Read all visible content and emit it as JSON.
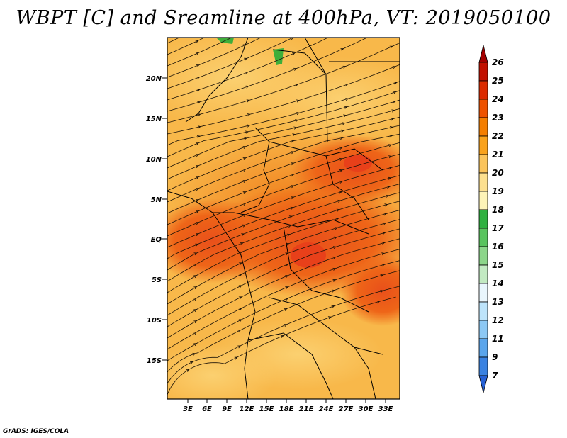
{
  "title": "WBPT [C] and Sreamline at 400hPa, VT: 2019050100",
  "footer": "GrADS: IGES/COLA",
  "map": {
    "variable": "WBPT",
    "units": "C",
    "level": "400hPa",
    "valid_time": "2019050100",
    "lat_ticks": [
      "20N",
      "15N",
      "10N",
      "5N",
      "EQ",
      "5S",
      "10S",
      "15S"
    ],
    "lon_ticks": [
      "3E",
      "6E",
      "9E",
      "12E",
      "15E",
      "18E",
      "21E",
      "24E",
      "27E",
      "30E",
      "33E"
    ]
  },
  "colorbar": {
    "labels": [
      "26",
      "25",
      "24",
      "23",
      "22",
      "21",
      "20",
      "19",
      "18",
      "17",
      "16",
      "15",
      "14",
      "13",
      "12",
      "11",
      "9",
      "7"
    ],
    "colors": [
      "#a50000",
      "#c21000",
      "#dc2b00",
      "#ee5200",
      "#f47e00",
      "#f9a21c",
      "#fbc45b",
      "#fde08f",
      "#fef4b8",
      "#2fb140",
      "#59c45e",
      "#8cd68a",
      "#c2eac2",
      "#e9f6fd",
      "#bde4fb",
      "#8cc8f4",
      "#5aa5ec",
      "#3a82e1",
      "#2661d5"
    ]
  }
}
